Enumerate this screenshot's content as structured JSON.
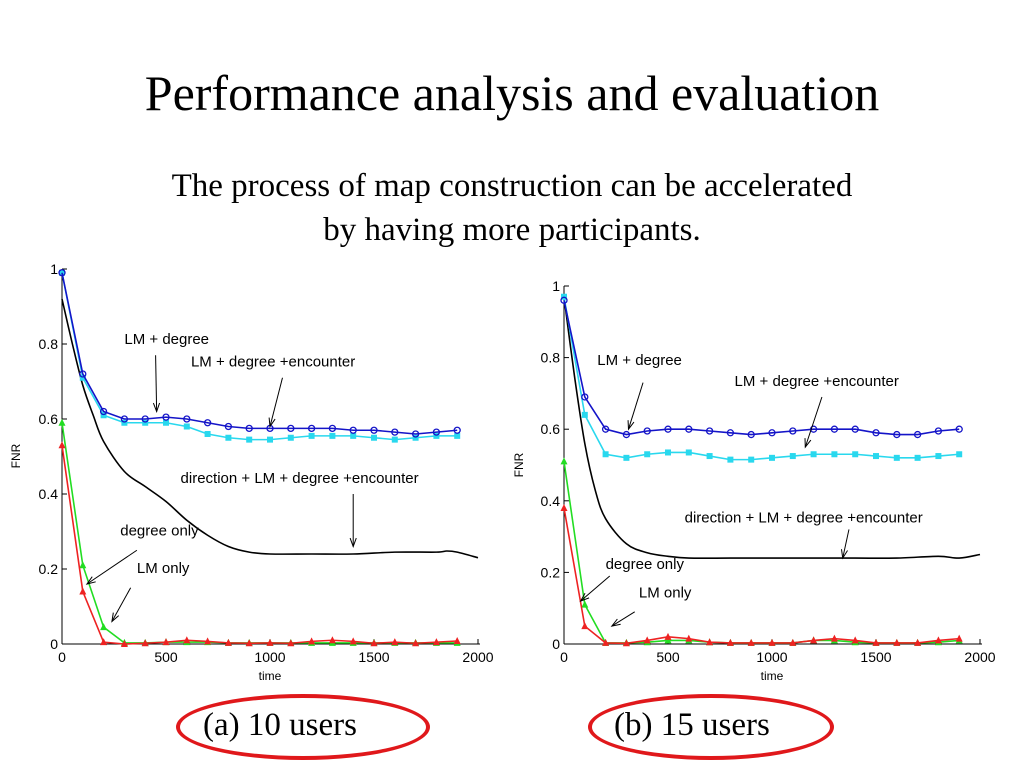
{
  "slide": {
    "title": "Performance analysis and evaluation",
    "subtitle_line1": "The process of map construction can be accelerated",
    "subtitle_line2": "by having more participants."
  },
  "captions": [
    "(a)  10 users",
    "(b) 15 users"
  ],
  "colors": {
    "blue": "#1414c8",
    "cyan": "#29d8ee",
    "black": "#000000",
    "green": "#22dd22",
    "red": "#ee2222",
    "oval": "#e0181b"
  },
  "chart_data": [
    {
      "type": "line",
      "xlabel": "time",
      "ylabel": "FNR",
      "xlim": [
        0,
        2000
      ],
      "ylim": [
        0,
        1
      ],
      "xticks": [
        "0",
        "500",
        "1000",
        "1500",
        "2000"
      ],
      "yticks": [
        "0",
        "0.2",
        "0.4",
        "0.6",
        "0.8",
        "1"
      ],
      "series": [
        {
          "name": "LM + degree",
          "color": "blue",
          "marker": "circle",
          "x": [
            0,
            100,
            200,
            300,
            400,
            500,
            600,
            700,
            800,
            900,
            1000,
            1100,
            1200,
            1300,
            1400,
            1500,
            1600,
            1700,
            1800,
            1900
          ],
          "y": [
            0.99,
            0.72,
            0.62,
            0.6,
            0.6,
            0.605,
            0.6,
            0.59,
            0.58,
            0.575,
            0.575,
            0.575,
            0.575,
            0.575,
            0.57,
            0.57,
            0.565,
            0.56,
            0.565,
            0.57
          ]
        },
        {
          "name": "LM + degree +encounter",
          "color": "cyan",
          "marker": "square",
          "x": [
            0,
            100,
            200,
            300,
            400,
            500,
            600,
            700,
            800,
            900,
            1000,
            1100,
            1200,
            1300,
            1400,
            1500,
            1600,
            1700,
            1800,
            1900
          ],
          "y": [
            0.99,
            0.71,
            0.61,
            0.59,
            0.59,
            0.59,
            0.58,
            0.56,
            0.55,
            0.545,
            0.545,
            0.55,
            0.555,
            0.555,
            0.555,
            0.55,
            0.545,
            0.55,
            0.555,
            0.555
          ]
        },
        {
          "name": "direction + LM + degree +encounter",
          "color": "black",
          "marker": "none",
          "x": [
            0,
            50,
            100,
            150,
            200,
            300,
            400,
            500,
            600,
            700,
            800,
            900,
            1000,
            1200,
            1400,
            1600,
            1800,
            1850,
            1900,
            2000
          ],
          "y": [
            0.92,
            0.8,
            0.69,
            0.61,
            0.54,
            0.46,
            0.42,
            0.38,
            0.33,
            0.29,
            0.26,
            0.245,
            0.24,
            0.24,
            0.24,
            0.245,
            0.245,
            0.248,
            0.245,
            0.23
          ]
        },
        {
          "name": "degree only",
          "color": "green",
          "marker": "triangle",
          "x": [
            0,
            100,
            200,
            300,
            400,
            500,
            600,
            700,
            800,
            900,
            1000,
            1100,
            1200,
            1300,
            1400,
            1500,
            1600,
            1700,
            1800,
            1900
          ],
          "y": [
            0.59,
            0.21,
            0.045,
            0.003,
            0.003,
            0.005,
            0.005,
            0.005,
            0.003,
            0.003,
            0.003,
            0.003,
            0.003,
            0.003,
            0.003,
            0.003,
            0.003,
            0.003,
            0.003,
            0.003
          ]
        },
        {
          "name": "LM only",
          "color": "red",
          "marker": "triangle",
          "x": [
            0,
            100,
            200,
            300,
            400,
            500,
            600,
            700,
            800,
            900,
            1000,
            1100,
            1200,
            1300,
            1400,
            1500,
            1600,
            1700,
            1800,
            1900
          ],
          "y": [
            0.53,
            0.14,
            0.005,
            0.0,
            0.002,
            0.005,
            0.01,
            0.007,
            0.003,
            0.002,
            0.003,
            0.002,
            0.007,
            0.01,
            0.007,
            0.002,
            0.005,
            0.002,
            0.005,
            0.008
          ]
        }
      ],
      "annotations": [
        {
          "text": "LM + degree",
          "x": 300,
          "y": 0.8,
          "ax": 450,
          "ay": 0.77,
          "tx": 455,
          "ty": 0.62
        },
        {
          "text": "LM + degree +encounter",
          "x": 620,
          "y": 0.74,
          "ax": 1060,
          "ay": 0.71,
          "tx": 1000,
          "ty": 0.58
        },
        {
          "text": "direction + LM + degree +encounter",
          "x": 570,
          "y": 0.43,
          "ax": 1400,
          "ay": 0.4,
          "tx": 1400,
          "ty": 0.26
        },
        {
          "text": "degree only",
          "x": 280,
          "y": 0.29,
          "ax": 360,
          "ay": 0.25,
          "tx": 120,
          "ty": 0.16
        },
        {
          "text": "LM only",
          "x": 360,
          "y": 0.19,
          "ax": 330,
          "ay": 0.15,
          "tx": 240,
          "ty": 0.06
        }
      ]
    },
    {
      "type": "line",
      "xlabel": "time",
      "ylabel": "FNR",
      "xlim": [
        0,
        2000
      ],
      "ylim": [
        0,
        1
      ],
      "xticks": [
        "0",
        "500",
        "1000",
        "1500",
        "2000"
      ],
      "yticks": [
        "0",
        "0.2",
        "0.4",
        "0.6",
        "0.8",
        "1"
      ],
      "series": [
        {
          "name": "LM + degree",
          "color": "blue",
          "marker": "circle",
          "x": [
            0,
            100,
            200,
            300,
            400,
            500,
            600,
            700,
            800,
            900,
            1000,
            1100,
            1200,
            1300,
            1400,
            1500,
            1600,
            1700,
            1800,
            1900
          ],
          "y": [
            0.96,
            0.69,
            0.6,
            0.585,
            0.595,
            0.6,
            0.6,
            0.595,
            0.59,
            0.585,
            0.59,
            0.595,
            0.6,
            0.6,
            0.6,
            0.59,
            0.585,
            0.585,
            0.595,
            0.6
          ]
        },
        {
          "name": "LM + degree +encounter",
          "color": "cyan",
          "marker": "square",
          "x": [
            0,
            100,
            200,
            300,
            400,
            500,
            600,
            700,
            800,
            900,
            1000,
            1100,
            1200,
            1300,
            1400,
            1500,
            1600,
            1700,
            1800,
            1900
          ],
          "y": [
            0.97,
            0.64,
            0.53,
            0.52,
            0.53,
            0.535,
            0.535,
            0.525,
            0.515,
            0.515,
            0.52,
            0.525,
            0.53,
            0.53,
            0.53,
            0.525,
            0.52,
            0.52,
            0.525,
            0.53
          ]
        },
        {
          "name": "direction + LM + degree +encounter",
          "color": "black",
          "marker": "none",
          "x": [
            0,
            50,
            100,
            150,
            200,
            300,
            400,
            500,
            600,
            800,
            1000,
            1200,
            1400,
            1600,
            1800,
            1900,
            2000
          ],
          "y": [
            0.97,
            0.75,
            0.56,
            0.43,
            0.35,
            0.28,
            0.255,
            0.245,
            0.24,
            0.24,
            0.24,
            0.24,
            0.24,
            0.24,
            0.245,
            0.24,
            0.25
          ]
        },
        {
          "name": "degree only",
          "color": "green",
          "marker": "triangle",
          "x": [
            0,
            100,
            200,
            300,
            400,
            500,
            600,
            700,
            800,
            900,
            1000,
            1100,
            1200,
            1300,
            1400,
            1500,
            1600,
            1700,
            1800,
            1900
          ],
          "y": [
            0.51,
            0.11,
            0.003,
            0.003,
            0.005,
            0.01,
            0.01,
            0.005,
            0.003,
            0.003,
            0.003,
            0.003,
            0.01,
            0.01,
            0.005,
            0.003,
            0.003,
            0.003,
            0.005,
            0.01
          ]
        },
        {
          "name": "LM only",
          "color": "red",
          "marker": "triangle",
          "x": [
            0,
            100,
            200,
            300,
            400,
            500,
            600,
            700,
            800,
            900,
            1000,
            1100,
            1200,
            1300,
            1400,
            1500,
            1600,
            1700,
            1800,
            1900
          ],
          "y": [
            0.38,
            0.05,
            0.003,
            0.002,
            0.01,
            0.02,
            0.015,
            0.005,
            0.003,
            0.003,
            0.003,
            0.003,
            0.01,
            0.015,
            0.01,
            0.003,
            0.003,
            0.003,
            0.01,
            0.015
          ]
        }
      ],
      "annotations": [
        {
          "text": "LM + degree",
          "x": 160,
          "y": 0.78,
          "ax": 380,
          "ay": 0.73,
          "tx": 310,
          "ty": 0.6
        },
        {
          "text": "LM + degree +encounter",
          "x": 820,
          "y": 0.72,
          "ax": 1240,
          "ay": 0.69,
          "tx": 1160,
          "ty": 0.55
        },
        {
          "text": "direction + LM + degree +encounter",
          "x": 580,
          "y": 0.34,
          "ax": 1370,
          "ay": 0.32,
          "tx": 1340,
          "ty": 0.24
        },
        {
          "text": "degree only",
          "x": 200,
          "y": 0.21,
          "ax": 220,
          "ay": 0.19,
          "tx": 80,
          "ty": 0.12
        },
        {
          "text": "LM only",
          "x": 360,
          "y": 0.13,
          "ax": 340,
          "ay": 0.09,
          "tx": 230,
          "ty": 0.05
        }
      ]
    }
  ]
}
